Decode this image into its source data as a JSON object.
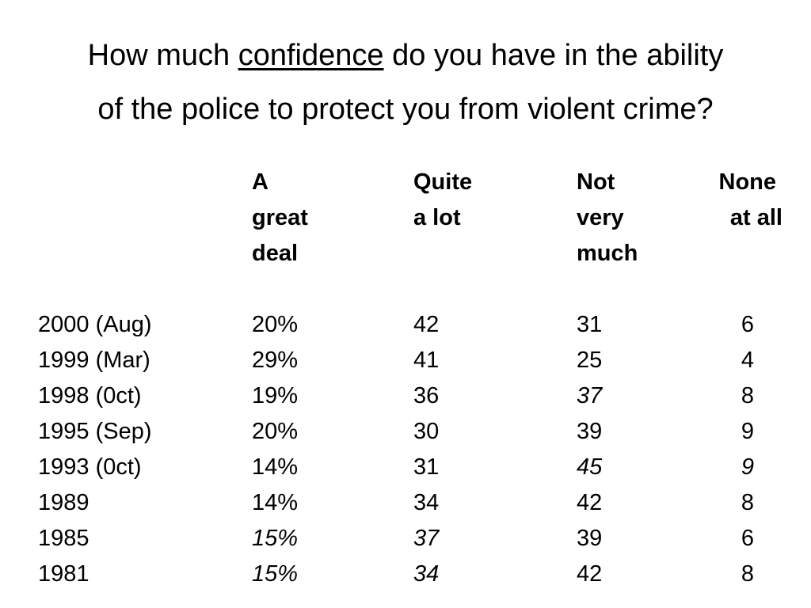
{
  "title": {
    "before": "How much ",
    "underlined": "confidence",
    "after": " do you have in the ability",
    "line2": "of the police to protect you from violent crime?"
  },
  "headers": [
    {
      "lines": [
        "A",
        "great",
        "deal"
      ]
    },
    {
      "lines": [
        "Quite",
        "a lot"
      ]
    },
    {
      "lines": [
        "Not",
        "very",
        "much"
      ]
    },
    {
      "lines": [
        "None",
        "at all"
      ]
    }
  ],
  "rows": [
    {
      "year": "2000 (Aug)",
      "cells": [
        {
          "v": "20%",
          "italic": false
        },
        {
          "v": "42",
          "italic": false
        },
        {
          "v": "31",
          "italic": false
        },
        {
          "v": "6",
          "italic": false
        }
      ]
    },
    {
      "year": "1999 (Mar)",
      "cells": [
        {
          "v": "29%",
          "italic": false
        },
        {
          "v": "41",
          "italic": false
        },
        {
          "v": "25",
          "italic": false
        },
        {
          "v": "4",
          "italic": false
        }
      ]
    },
    {
      "year": "1998 (0ct)",
      "cells": [
        {
          "v": "19%",
          "italic": false
        },
        {
          "v": "36",
          "italic": false
        },
        {
          "v": "37",
          "italic": true
        },
        {
          "v": "8",
          "italic": false
        }
      ]
    },
    {
      "year": "1995 (Sep)",
      "cells": [
        {
          "v": "20%",
          "italic": false
        },
        {
          "v": "30",
          "italic": false
        },
        {
          "v": "39",
          "italic": false
        },
        {
          "v": "9",
          "italic": false
        }
      ]
    },
    {
      "year": "1993 (0ct)",
      "cells": [
        {
          "v": "14%",
          "italic": false
        },
        {
          "v": "31",
          "italic": false
        },
        {
          "v": "45",
          "italic": true
        },
        {
          "v": "9",
          "italic": true
        }
      ]
    },
    {
      "year": "1989",
      "cells": [
        {
          "v": "14%",
          "italic": false
        },
        {
          "v": "34",
          "italic": false
        },
        {
          "v": "42",
          "italic": false
        },
        {
          "v": "8",
          "italic": false
        }
      ]
    },
    {
      "year": "1985",
      "cells": [
        {
          "v": "15%",
          "italic": true
        },
        {
          "v": "37",
          "italic": true
        },
        {
          "v": "39",
          "italic": false
        },
        {
          "v": "6",
          "italic": false
        }
      ]
    },
    {
      "year": "1981",
      "cells": [
        {
          "v": "15%",
          "italic": true
        },
        {
          "v": "34",
          "italic": true
        },
        {
          "v": "42",
          "italic": false
        },
        {
          "v": "8",
          "italic": false
        }
      ]
    }
  ]
}
